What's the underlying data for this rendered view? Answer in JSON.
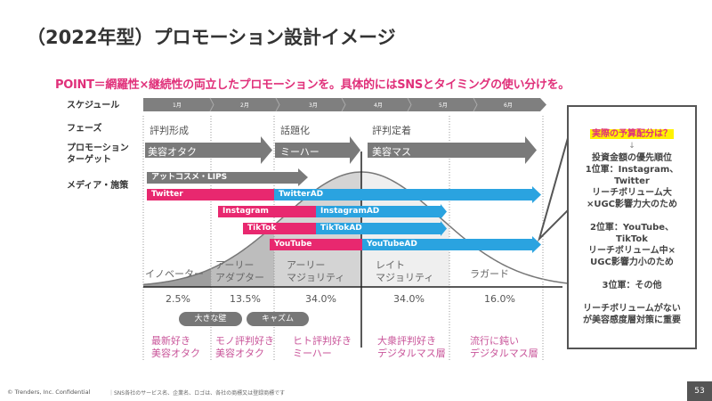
{
  "title": "（2022年型）プロモーション設計イメージ",
  "point": "POINT＝網羅性×継続性の両立したプロモーションを。具体的にはSNSとタイミングの使い分けを。",
  "row_labels": {
    "schedule": "スケジュール",
    "phase": "フェーズ",
    "promo_1": "プロモーション",
    "promo_2": "ターゲット",
    "media": "メディア・施策"
  },
  "months": [
    "1月",
    "2月",
    "3月",
    "4月",
    "5月",
    "6月"
  ],
  "phases": [
    "評判形成",
    "話題化",
    "評判定着"
  ],
  "targets": [
    "美容オタク",
    "ミーハー",
    "美容マス"
  ],
  "media": {
    "cosme": "アットコスメ・LIPS",
    "twitter": "Twitter",
    "twitter_ad": "TwitterAD",
    "instagram": "Instagram",
    "instagram_ad": "InstagramAD",
    "tiktok": "TikTok",
    "tiktok_ad": "TikTokAD",
    "youtube": "YouTube",
    "youtube_ad": "YouTubeAD"
  },
  "segments": [
    {
      "l1": "イノベーター",
      "l2": "",
      "pct": "2.5%",
      "d1": "最新好き",
      "d2": "美容オタク"
    },
    {
      "l1": "アーリー",
      "l2": "アダプター",
      "pct": "13.5%",
      "d1": "モノ評判好き",
      "d2": "美容オタク"
    },
    {
      "l1": "アーリー",
      "l2": "マジョリティ",
      "pct": "34.0%",
      "d1": "ヒト評判好き",
      "d2": "ミーハー"
    },
    {
      "l1": "レイト",
      "l2": "マジョリティ",
      "pct": "34.0%",
      "d1": "大衆評判好き",
      "d2": "デジタルマス層"
    },
    {
      "l1": "ラガード",
      "l2": "",
      "pct": "16.0%",
      "d1": "流行に鈍い",
      "d2": "デジタルマス層"
    }
  ],
  "pills": [
    "大きな壁",
    "キャズム"
  ],
  "callout": {
    "heading": "実際の予算配分は？",
    "arrow": "↓",
    "lines": [
      "投資金額の優先順位",
      "1位軍：Instagram、",
      "Twitter",
      "リーチボリューム大",
      "×UGC影響力大のため",
      "",
      "2位軍：YouTube、",
      "TikTok",
      "リーチボリューム中×",
      "UGC影響力小のため",
      "",
      "3位軍：その他",
      "",
      "リーチボリュームがない",
      "が美容感度層対策に重要"
    ]
  },
  "footer": {
    "copyright": "© Trenders, Inc. Confidential",
    "notice": "｜SNS各社のサービス名、企業名、ロゴは、各社の商標又は登録商標です",
    "page": "53"
  },
  "colors": {
    "pink": "#e8286f",
    "blue": "#2aa3e0",
    "gray": "#7a7a7a",
    "highlight": "#fff200"
  }
}
